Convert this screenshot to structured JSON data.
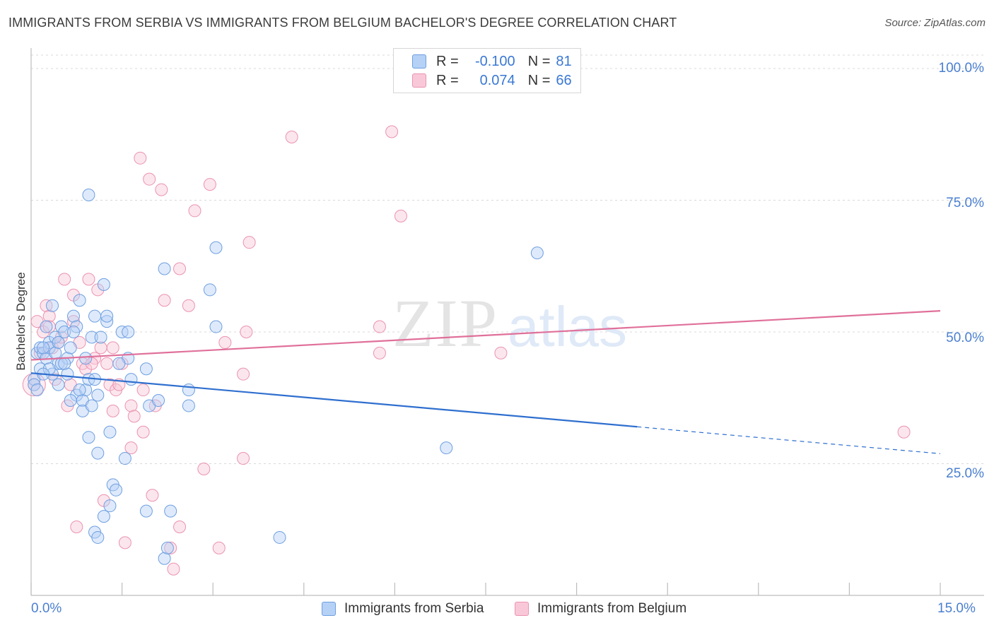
{
  "title": "IMMIGRANTS FROM SERBIA VS IMMIGRANTS FROM BELGIUM BACHELOR'S DEGREE CORRELATION CHART",
  "source": "Source: ZipAtlas.com",
  "watermark": {
    "zip": "ZIP",
    "atlas": "atlas"
  },
  "legend": {
    "r_label": "R =",
    "n_label": "N =",
    "serbia": {
      "r": "-0.100",
      "n": "81"
    },
    "belgium": {
      "r": "0.074",
      "n": "66"
    }
  },
  "colors": {
    "serbia_fill": "#b5d1f6",
    "serbia_stroke": "#6e9fe0",
    "serbia_line": "#2f6fcf",
    "belgium_fill": "#f9c8d8",
    "belgium_stroke": "#ea93b0",
    "belgium_line": "#e0709a",
    "tick_text": "#4a7fd0",
    "grid": "#d9d9d9"
  },
  "chart_data": {
    "type": "scatter",
    "title": "IMMIGRANTS FROM SERBIA VS IMMIGRANTS FROM BELGIUM BACHELOR'S DEGREE CORRELATION CHART",
    "xlabel": "",
    "ylabel": "Bachelor's Degree",
    "xlim": [
      0,
      15
    ],
    "ylim": [
      0,
      100
    ],
    "x_tick_labels": {
      "min": "0.0%",
      "max": "15.0%"
    },
    "y_ticks": [
      {
        "value": 100,
        "label": "100.0%"
      },
      {
        "value": 75,
        "label": "75.0%"
      },
      {
        "value": 50,
        "label": "50.0%"
      },
      {
        "value": 25,
        "label": "25.0%"
      }
    ],
    "grid": true,
    "series": [
      {
        "name": "Immigrants from Serbia",
        "trend": {
          "x0": 0,
          "y0": 42.2,
          "x1": 10.0,
          "y1": 32.0,
          "dash_to_x": 15.0,
          "dash_to_y": 26.9
        },
        "points": [
          [
            0.05,
            41
          ],
          [
            0.1,
            46
          ],
          [
            0.15,
            47
          ],
          [
            0.2,
            46
          ],
          [
            0.25,
            51
          ],
          [
            0.3,
            48
          ],
          [
            0.35,
            42
          ],
          [
            0.4,
            49
          ],
          [
            0.45,
            44
          ],
          [
            0.5,
            51
          ],
          [
            0.55,
            50
          ],
          [
            0.6,
            45
          ],
          [
            0.65,
            47
          ],
          [
            0.7,
            53
          ],
          [
            0.75,
            38
          ],
          [
            0.8,
            56
          ],
          [
            0.85,
            37
          ],
          [
            0.9,
            39
          ],
          [
            0.95,
            41
          ],
          [
            1.0,
            49
          ],
          [
            1.05,
            53
          ],
          [
            1.1,
            27
          ],
          [
            1.15,
            49
          ],
          [
            1.2,
            15
          ],
          [
            1.25,
            52
          ],
          [
            1.3,
            17
          ],
          [
            1.35,
            21
          ],
          [
            1.4,
            20
          ],
          [
            1.5,
            50
          ],
          [
            1.55,
            26
          ],
          [
            1.6,
            45
          ],
          [
            1.65,
            41
          ],
          [
            1.9,
            16
          ],
          [
            1.9,
            43
          ],
          [
            1.95,
            36
          ],
          [
            2.1,
            37
          ],
          [
            2.2,
            7
          ],
          [
            2.25,
            9
          ],
          [
            2.3,
            16
          ],
          [
            2.6,
            39
          ],
          [
            2.6,
            36
          ],
          [
            2.95,
            58
          ],
          [
            3.05,
            51
          ],
          [
            0.25,
            45
          ],
          [
            0.5,
            44
          ],
          [
            0.45,
            40
          ],
          [
            1.1,
            38
          ],
          [
            1.25,
            53
          ],
          [
            2.2,
            62
          ],
          [
            0.95,
            76
          ],
          [
            3.05,
            66
          ],
          [
            4.1,
            11
          ],
          [
            6.85,
            28
          ],
          [
            8.35,
            65
          ],
          [
            1.05,
            12
          ],
          [
            1.1,
            11
          ],
          [
            0.3,
            47
          ],
          [
            0.2,
            47
          ],
          [
            0.05,
            40
          ],
          [
            0.15,
            43
          ],
          [
            0.35,
            55
          ],
          [
            0.6,
            42
          ],
          [
            0.65,
            37
          ],
          [
            0.75,
            51
          ],
          [
            0.85,
            35
          ],
          [
            0.95,
            30
          ],
          [
            1.05,
            41
          ],
          [
            1.2,
            59
          ],
          [
            1.3,
            31
          ],
          [
            1.45,
            44
          ],
          [
            1.6,
            50
          ],
          [
            0.4,
            46
          ],
          [
            0.55,
            44
          ],
          [
            0.7,
            50
          ],
          [
            0.9,
            45
          ],
          [
            0.3,
            43
          ],
          [
            0.1,
            39
          ],
          [
            0.2,
            42
          ],
          [
            0.45,
            48
          ],
          [
            0.8,
            39
          ],
          [
            1.0,
            36
          ]
        ]
      },
      {
        "name": "Immigrants from Belgium",
        "trend": {
          "x0": 0,
          "y0": 44.7,
          "x1": 15.0,
          "y1": 54.0
        },
        "points": [
          [
            0.05,
            40
          ],
          [
            0.2,
            50
          ],
          [
            0.25,
            55
          ],
          [
            0.3,
            53
          ],
          [
            0.35,
            47
          ],
          [
            0.4,
            41
          ],
          [
            0.45,
            48
          ],
          [
            0.55,
            60
          ],
          [
            0.6,
            36
          ],
          [
            0.7,
            52
          ],
          [
            0.7,
            57
          ],
          [
            0.75,
            13
          ],
          [
            0.85,
            44
          ],
          [
            0.9,
            43
          ],
          [
            0.95,
            60
          ],
          [
            1.05,
            45
          ],
          [
            1.1,
            58
          ],
          [
            1.2,
            18
          ],
          [
            1.25,
            44
          ],
          [
            1.3,
            40
          ],
          [
            1.35,
            47
          ],
          [
            1.4,
            39
          ],
          [
            1.5,
            44
          ],
          [
            1.55,
            10
          ],
          [
            1.65,
            28
          ],
          [
            1.65,
            36
          ],
          [
            1.8,
            83
          ],
          [
            1.85,
            31
          ],
          [
            1.85,
            39
          ],
          [
            1.95,
            79
          ],
          [
            2.0,
            19
          ],
          [
            2.15,
            77
          ],
          [
            2.2,
            56
          ],
          [
            2.3,
            9
          ],
          [
            2.35,
            5
          ],
          [
            2.45,
            13
          ],
          [
            2.45,
            62
          ],
          [
            2.6,
            55
          ],
          [
            2.7,
            73
          ],
          [
            2.85,
            24
          ],
          [
            2.95,
            78
          ],
          [
            3.1,
            9
          ],
          [
            3.2,
            48
          ],
          [
            3.5,
            26
          ],
          [
            3.5,
            42
          ],
          [
            3.55,
            50
          ],
          [
            3.6,
            67
          ],
          [
            4.3,
            87
          ],
          [
            5.75,
            46
          ],
          [
            5.75,
            51
          ],
          [
            5.95,
            88
          ],
          [
            6.1,
            72
          ],
          [
            7.75,
            46
          ],
          [
            14.4,
            31
          ],
          [
            0.1,
            52
          ],
          [
            0.15,
            46
          ],
          [
            0.3,
            51
          ],
          [
            0.5,
            49
          ],
          [
            0.65,
            40
          ],
          [
            0.8,
            48
          ],
          [
            1.0,
            44
          ],
          [
            1.15,
            47
          ],
          [
            1.35,
            35
          ],
          [
            1.45,
            40
          ],
          [
            1.7,
            34
          ],
          [
            2.05,
            36
          ]
        ]
      }
    ]
  },
  "bottom_legend": {
    "serbia": "Immigrants from Serbia",
    "belgium": "Immigrants from Belgium"
  }
}
